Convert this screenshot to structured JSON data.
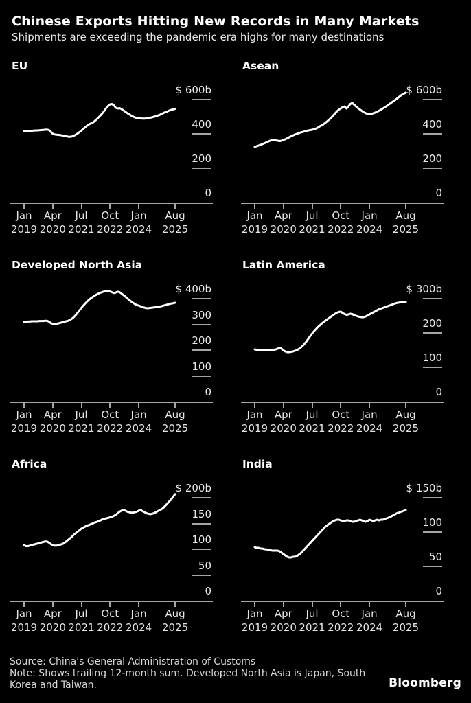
{
  "header": {
    "title": "Chinese Exports Hitting New Records in Many Markets",
    "subtitle": "Shipments are exceeding the pandemic era highs for many destinations"
  },
  "footer": {
    "source": "Source: China's General Administration of Customs",
    "note": "Note: Shows trailing 12-month sum. Developed North Asia is Japan, South Korea and Taiwan.",
    "brand": "Bloomberg"
  },
  "colors": {
    "background": "#000000",
    "line": "#ffffff",
    "axis": "#a6a6a6",
    "tick_text": "#e5e5e5",
    "title_text": "#ffffff"
  },
  "x_axis": {
    "tick_positions": [
      0,
      15,
      30,
      45,
      60,
      79
    ],
    "tick_labels": [
      [
        "Jan",
        "2019"
      ],
      [
        "Apr",
        "2020"
      ],
      [
        "Jul",
        "2021"
      ],
      [
        "Oct",
        "2022"
      ],
      [
        "Jan",
        "2024"
      ],
      [
        "Aug",
        "2025"
      ]
    ]
  },
  "chart_data": [
    {
      "type": "line",
      "title": "EU",
      "unit": "$ billions, trailing 12-month sum",
      "x_range": [
        "Jan 2019",
        "Aug 2025"
      ],
      "frequency": "monthly",
      "y_top_tick": 600,
      "ylim": [
        0,
        730
      ],
      "y_ticks": [
        {
          "value": 600,
          "label": "$ 600b"
        },
        {
          "value": 400,
          "label": "400"
        },
        {
          "value": 200,
          "label": "200"
        },
        {
          "value": 0,
          "label": "0"
        }
      ],
      "values": [
        416,
        417,
        417,
        418,
        418,
        419,
        420,
        420,
        421,
        422,
        423,
        424,
        425,
        423,
        412,
        401,
        397,
        395,
        394,
        393,
        391,
        388,
        386,
        384,
        383,
        385,
        389,
        395,
        402,
        410,
        419,
        429,
        439,
        448,
        456,
        461,
        466,
        475,
        485,
        496,
        508,
        521,
        535,
        550,
        563,
        572,
        574,
        566,
        552,
        548,
        550,
        545,
        537,
        529,
        521,
        514,
        507,
        501,
        496,
        493,
        492,
        490,
        489,
        489,
        490,
        492,
        494,
        497,
        500,
        503,
        507,
        511,
        517,
        522,
        527,
        531,
        536,
        540,
        543,
        546
      ]
    },
    {
      "type": "line",
      "title": "Asean",
      "unit": "$ billions, trailing 12-month sum",
      "x_range": [
        "Jan 2019",
        "Aug 2025"
      ],
      "frequency": "monthly",
      "y_top_tick": 600,
      "ylim": [
        0,
        730
      ],
      "y_ticks": [
        {
          "value": 600,
          "label": "$ 600b"
        },
        {
          "value": 400,
          "label": "400"
        },
        {
          "value": 200,
          "label": "200"
        },
        {
          "value": 0,
          "label": "0"
        }
      ],
      "values": [
        324,
        328,
        332,
        336,
        340,
        345,
        350,
        355,
        360,
        363,
        364,
        362,
        360,
        358,
        360,
        364,
        369,
        374,
        380,
        386,
        391,
        396,
        400,
        404,
        408,
        411,
        414,
        417,
        420,
        422,
        424,
        427,
        431,
        437,
        444,
        450,
        457,
        465,
        474,
        484,
        495,
        507,
        519,
        531,
        541,
        548,
        556,
        560,
        548,
        560,
        574,
        580,
        570,
        560,
        550,
        542,
        534,
        527,
        521,
        517,
        516,
        517,
        520,
        524,
        529,
        535,
        541,
        548,
        555,
        562,
        570,
        578,
        586,
        594,
        602,
        611,
        620,
        628,
        634,
        640
      ]
    },
    {
      "type": "line",
      "title": "Developed North Asia",
      "unit": "$ billions, trailing 12-month sum",
      "x_range": [
        "Jan 2019",
        "Aug 2025"
      ],
      "frequency": "monthly",
      "y_top_tick": 400,
      "ylim": [
        0,
        490
      ],
      "y_ticks": [
        {
          "value": 400,
          "label": "$ 400b"
        },
        {
          "value": 300,
          "label": "300"
        },
        {
          "value": 200,
          "label": "200"
        },
        {
          "value": 100,
          "label": "100"
        },
        {
          "value": 0,
          "label": "0"
        }
      ],
      "values": [
        310,
        310,
        311,
        311,
        312,
        312,
        312,
        312,
        313,
        313,
        313,
        314,
        314,
        311,
        305,
        302,
        301,
        302,
        304,
        306,
        308,
        310,
        312,
        314,
        317,
        322,
        328,
        336,
        345,
        355,
        364,
        373,
        381,
        389,
        396,
        402,
        407,
        412,
        416,
        420,
        423,
        426,
        428,
        429,
        429,
        428,
        425,
        422,
        424,
        427,
        425,
        420,
        414,
        408,
        401,
        395,
        389,
        384,
        379,
        375,
        373,
        370,
        367,
        365,
        363,
        363,
        364,
        365,
        366,
        367,
        368,
        369,
        371,
        373,
        375,
        377,
        379,
        381,
        382,
        384
      ]
    },
    {
      "type": "line",
      "title": "Latin America",
      "unit": "$ billions, trailing 12-month sum",
      "x_range": [
        "Jan 2019",
        "Aug 2025"
      ],
      "frequency": "monthly",
      "y_top_tick": 300,
      "ylim": [
        0,
        365
      ],
      "y_ticks": [
        {
          "value": 300,
          "label": "$ 300b"
        },
        {
          "value": 200,
          "label": "200"
        },
        {
          "value": 100,
          "label": "100"
        },
        {
          "value": 0,
          "label": "0"
        }
      ],
      "values": [
        152,
        151,
        151,
        150,
        150,
        150,
        149,
        149,
        150,
        150,
        151,
        152,
        154,
        157,
        154,
        149,
        146,
        144,
        144,
        145,
        146,
        148,
        150,
        153,
        157,
        162,
        168,
        175,
        183,
        191,
        198,
        205,
        211,
        217,
        222,
        227,
        232,
        236,
        240,
        244,
        248,
        252,
        256,
        259,
        261,
        262,
        258,
        255,
        253,
        254,
        256,
        255,
        252,
        250,
        248,
        247,
        246,
        246,
        248,
        251,
        254,
        257,
        260,
        263,
        266,
        269,
        271,
        273,
        275,
        277,
        279,
        281,
        283,
        285,
        287,
        288,
        289,
        290,
        290,
        290
      ]
    },
    {
      "type": "line",
      "title": "Africa",
      "unit": "$ billions, trailing 12-month sum",
      "x_range": [
        "Jan 2019",
        "Aug 2025"
      ],
      "frequency": "monthly",
      "y_top_tick": 200,
      "ylim": [
        0,
        245
      ],
      "y_ticks": [
        {
          "value": 200,
          "label": "$ 200b"
        },
        {
          "value": 150,
          "label": "150"
        },
        {
          "value": 100,
          "label": "100"
        },
        {
          "value": 50,
          "label": "50"
        },
        {
          "value": 0,
          "label": "0"
        }
      ],
      "values": [
        108,
        106,
        106,
        107,
        108,
        109,
        110,
        111,
        112,
        113,
        114,
        115,
        115,
        113,
        110,
        108,
        107,
        107,
        108,
        109,
        110,
        112,
        115,
        118,
        121,
        124,
        128,
        131,
        134,
        137,
        140,
        142,
        144,
        146,
        147,
        149,
        150,
        152,
        153,
        155,
        156,
        158,
        159,
        160,
        161,
        162,
        163,
        165,
        167,
        170,
        173,
        175,
        176,
        175,
        173,
        172,
        171,
        171,
        172,
        173,
        175,
        176,
        174,
        172,
        170,
        169,
        168,
        169,
        170,
        172,
        174,
        176,
        178,
        181,
        185,
        189,
        193,
        197,
        202,
        207
      ]
    },
    {
      "type": "line",
      "title": "India",
      "unit": "$ billions, trailing 12-month sum",
      "x_range": [
        "Jan 2019",
        "Aug 2025"
      ],
      "frequency": "monthly",
      "y_top_tick": 150,
      "ylim": [
        0,
        183
      ],
      "y_ticks": [
        {
          "value": 150,
          "label": "$ 150b"
        },
        {
          "value": 100,
          "label": "100"
        },
        {
          "value": 50,
          "label": "50"
        },
        {
          "value": 0,
          "label": "0"
        }
      ],
      "values": [
        78,
        77,
        77,
        76,
        76,
        75,
        75,
        74,
        74,
        73,
        73,
        73,
        73,
        72,
        70,
        68,
        66,
        64,
        63,
        63,
        64,
        64,
        65,
        67,
        69,
        72,
        75,
        78,
        81,
        84,
        87,
        90,
        93,
        96,
        99,
        102,
        105,
        108,
        110,
        112,
        114,
        116,
        117,
        118,
        118,
        117,
        116,
        116,
        117,
        117,
        116,
        115,
        115,
        116,
        117,
        118,
        117,
        116,
        115,
        116,
        118,
        117,
        116,
        117,
        118,
        117,
        118,
        118,
        119,
        120,
        121,
        122,
        124,
        125,
        127,
        128,
        129,
        130,
        131,
        132
      ]
    }
  ]
}
